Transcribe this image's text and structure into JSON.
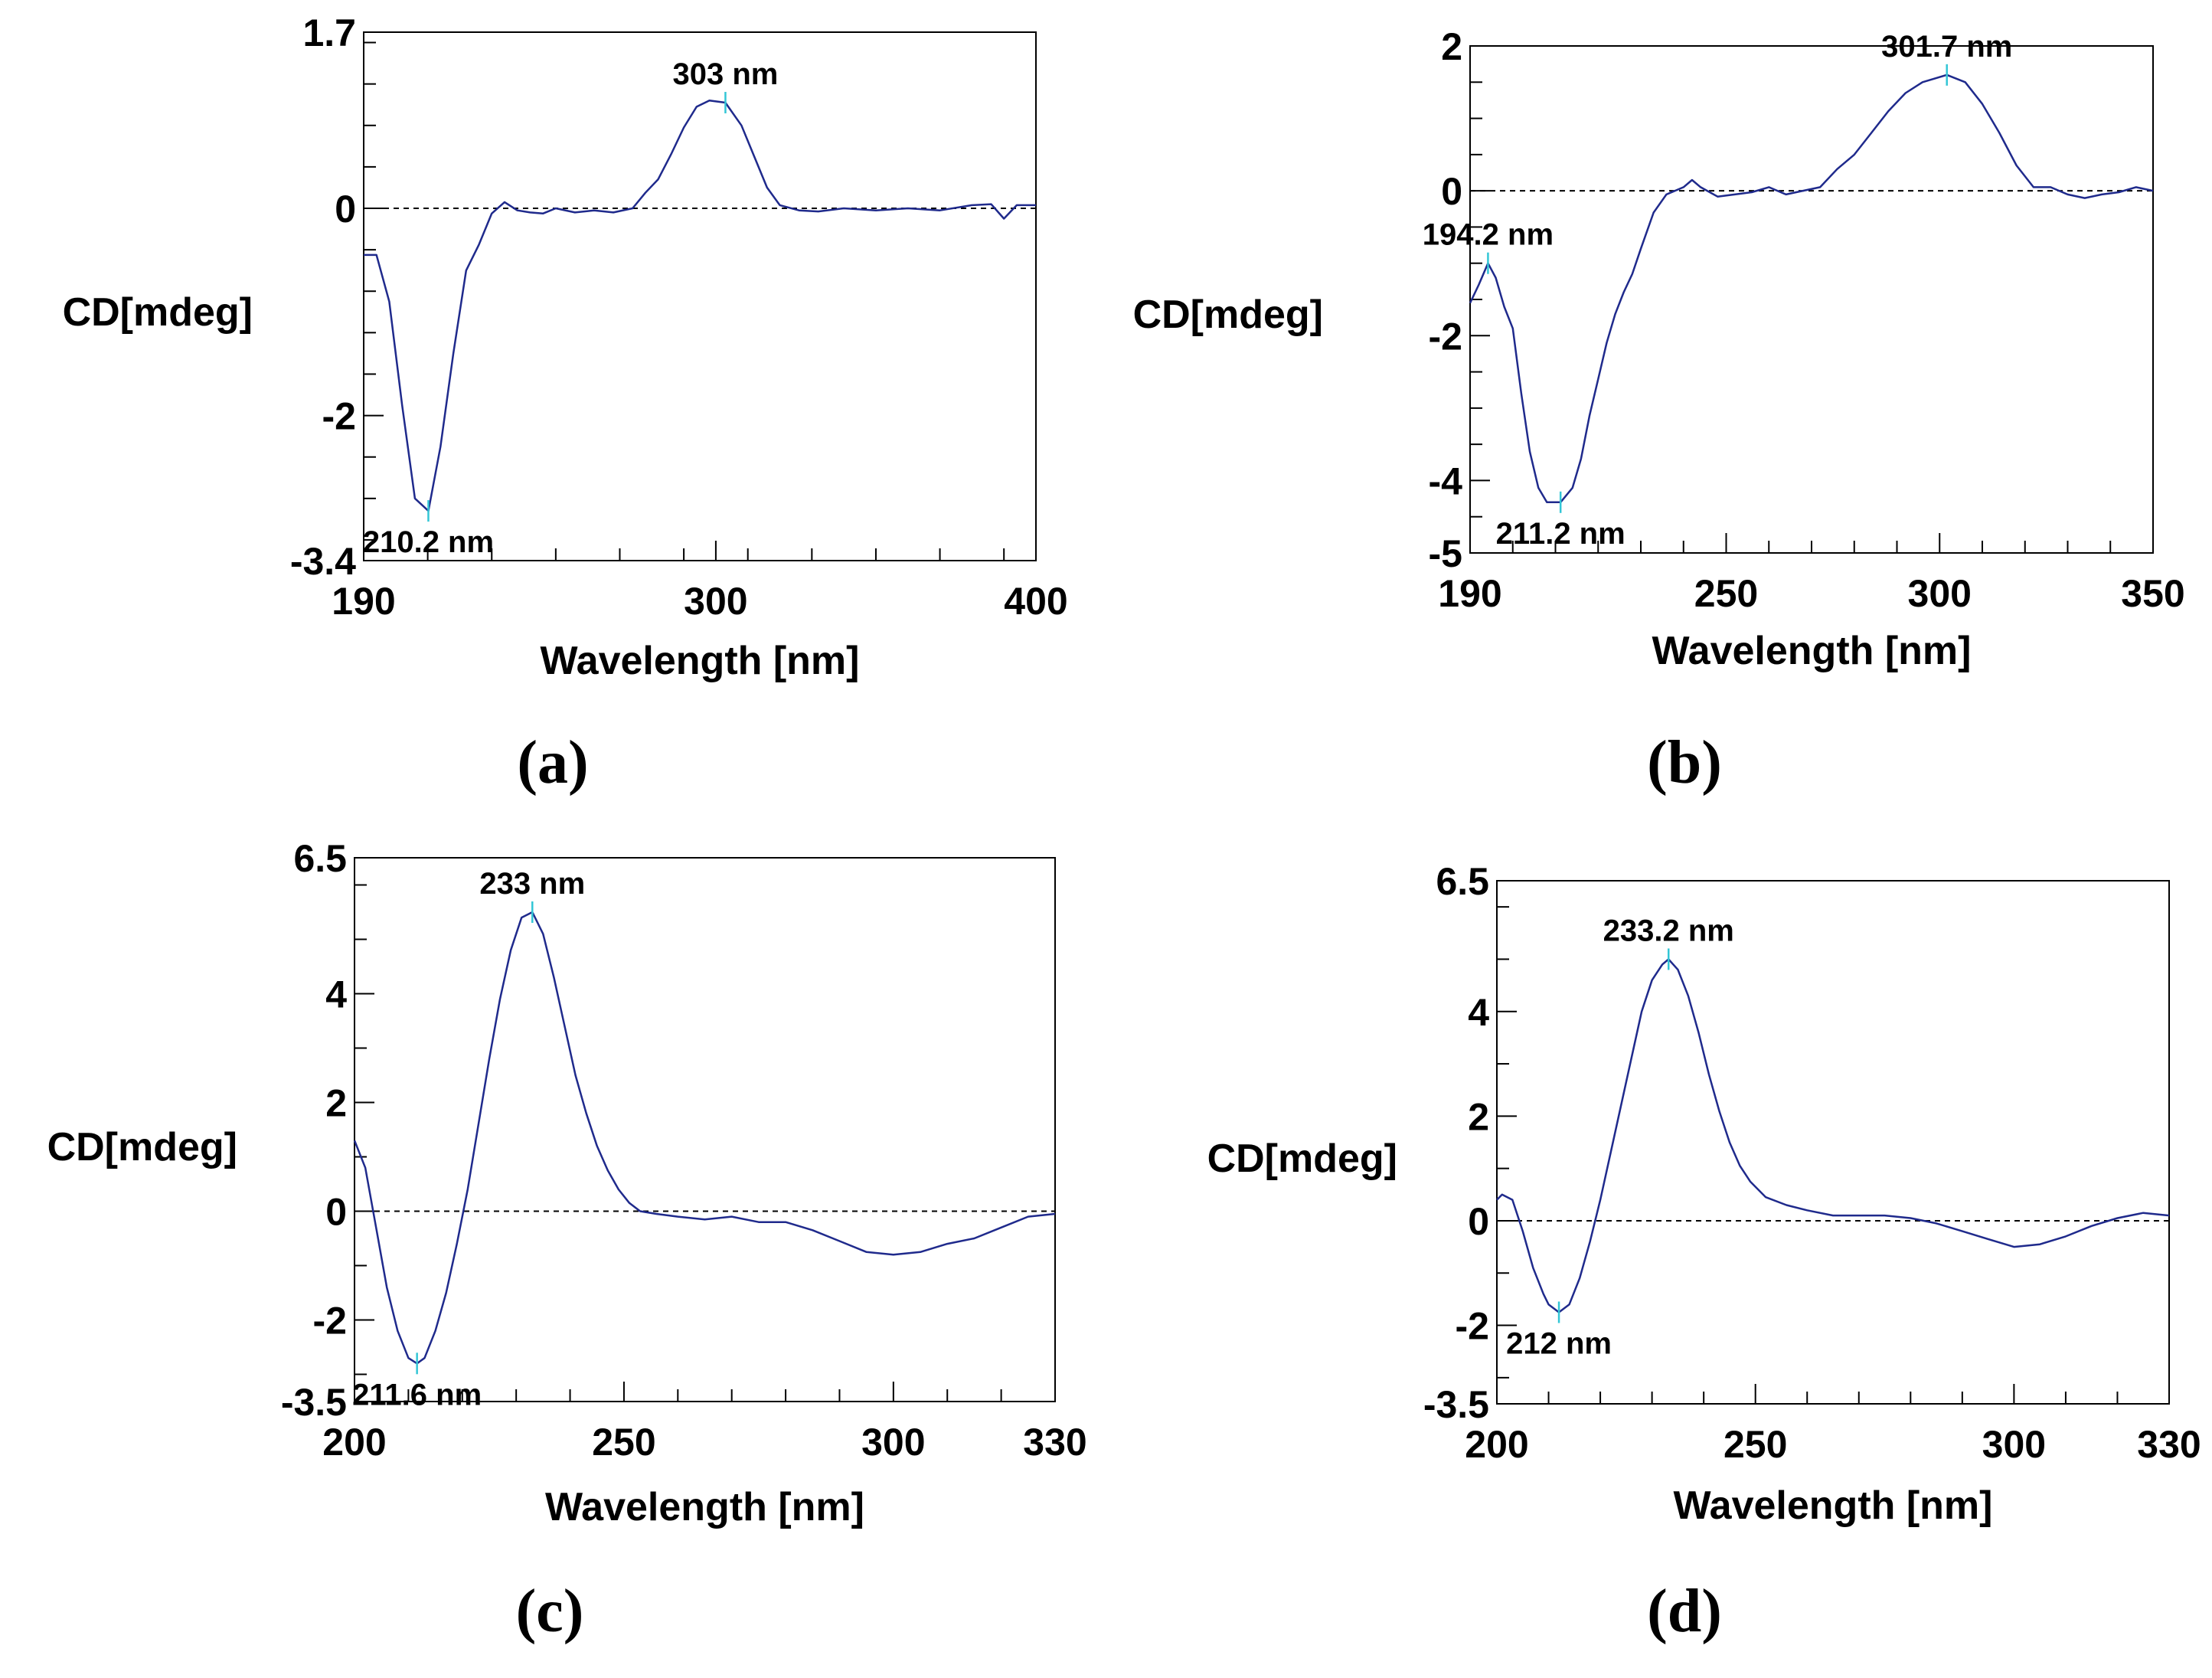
{
  "chart_data": [
    {
      "type": "line",
      "panel": "(a)",
      "xlabel": "Wavelength [nm]",
      "ylabel": "CD[mdeg]",
      "xlim": [
        190,
        400
      ],
      "ylim": [
        -3.4,
        1.7
      ],
      "xticks": [
        190,
        300,
        400
      ],
      "yticks": [
        1.7,
        0,
        -2,
        -3.4
      ],
      "ytick_labels": [
        "1.7",
        "0",
        "-2",
        "-3.4"
      ],
      "x_minor_step": 20,
      "y_minor_step": 0.4,
      "zero_line": true,
      "line_color": "#1f2a8c",
      "marker_color": "#33c6d6",
      "series": [
        {
          "name": "CD",
          "x": [
            190,
            194,
            198,
            202,
            206,
            210.2,
            214,
            218,
            222,
            226,
            230,
            234,
            238,
            242,
            246,
            250,
            256,
            262,
            268,
            274,
            278,
            282,
            286,
            290,
            294,
            298,
            303,
            308,
            312,
            316,
            320,
            326,
            332,
            340,
            350,
            360,
            370,
            380,
            386,
            390,
            394,
            400
          ],
          "y": [
            -0.45,
            -0.45,
            -0.9,
            -1.9,
            -2.8,
            -2.92,
            -2.3,
            -1.4,
            -0.6,
            -0.35,
            -0.05,
            0.06,
            -0.02,
            -0.04,
            -0.05,
            0.0,
            -0.04,
            -0.02,
            -0.04,
            0.0,
            0.15,
            0.28,
            0.52,
            0.78,
            0.98,
            1.04,
            1.02,
            0.8,
            0.5,
            0.2,
            0.03,
            -0.02,
            -0.03,
            0.0,
            -0.02,
            0.0,
            -0.02,
            0.03,
            0.04,
            -0.1,
            0.03,
            0.03
          ]
        }
      ],
      "annotations": [
        {
          "text": "303 nm",
          "x": 303,
          "y": 1.02,
          "pos": "above"
        },
        {
          "text": "210.2 nm",
          "x": 210.2,
          "y": -2.92,
          "pos": "below"
        }
      ]
    },
    {
      "type": "line",
      "panel": "(b)",
      "xlabel": "Wavelength [nm]",
      "ylabel": "CD[mdeg]",
      "xlim": [
        190,
        350
      ],
      "ylim": [
        -5,
        2
      ],
      "xticks": [
        190,
        250,
        300,
        350
      ],
      "yticks": [
        2,
        0,
        -2,
        -4,
        -5
      ],
      "ytick_labels": [
        "2",
        "0",
        "-2",
        "-4",
        "-5"
      ],
      "x_minor_step": 10,
      "y_minor_step": 0.5,
      "zero_line": true,
      "line_color": "#1f2a8c",
      "marker_color": "#33c6d6",
      "series": [
        {
          "name": "CD",
          "x": [
            190,
            192,
            194.2,
            196,
            198,
            200,
            202,
            204,
            206,
            208,
            211.2,
            214,
            216,
            218,
            220,
            222,
            224,
            226,
            228,
            230,
            233,
            236,
            240,
            242,
            244,
            248,
            252,
            256,
            260,
            264,
            268,
            272,
            276,
            280,
            284,
            288,
            292,
            296,
            301.7,
            306,
            310,
            314,
            318,
            322,
            326,
            330,
            334,
            338,
            342,
            346,
            350
          ],
          "y": [
            -1.55,
            -1.3,
            -1.0,
            -1.2,
            -1.6,
            -1.9,
            -2.8,
            -3.6,
            -4.1,
            -4.3,
            -4.3,
            -4.1,
            -3.7,
            -3.1,
            -2.6,
            -2.1,
            -1.7,
            -1.4,
            -1.15,
            -0.8,
            -0.3,
            -0.05,
            0.05,
            0.15,
            0.05,
            -0.08,
            -0.05,
            -0.02,
            0.05,
            -0.05,
            0.0,
            0.05,
            0.3,
            0.5,
            0.8,
            1.1,
            1.35,
            1.5,
            1.6,
            1.5,
            1.2,
            0.8,
            0.35,
            0.05,
            0.05,
            -0.05,
            -0.1,
            -0.05,
            -0.02,
            0.05,
            0.0
          ]
        }
      ],
      "annotations": [
        {
          "text": "301.7 nm",
          "x": 301.7,
          "y": 1.6,
          "pos": "above"
        },
        {
          "text": "194.2 nm",
          "x": 194.2,
          "y": -1.0,
          "pos": "above"
        },
        {
          "text": "211.2 nm",
          "x": 211.2,
          "y": -4.3,
          "pos": "below"
        }
      ]
    },
    {
      "type": "line",
      "panel": "(c)",
      "xlabel": "Wavelength [nm]",
      "ylabel": "CD[mdeg]",
      "xlim": [
        200,
        330
      ],
      "ylim": [
        -3.5,
        6.5
      ],
      "xticks": [
        200,
        250,
        300,
        330
      ],
      "yticks": [
        6.5,
        4,
        2,
        0,
        -2,
        -3.5
      ],
      "ytick_labels": [
        "6.5",
        "4",
        "2",
        "0",
        "-2",
        "-3.5"
      ],
      "x_minor_step": 10,
      "y_minor_step": 1,
      "zero_line": true,
      "line_color": "#1f2a8c",
      "marker_color": "#33c6d6",
      "series": [
        {
          "name": "CD",
          "x": [
            200,
            202,
            204,
            206,
            208,
            210,
            211.6,
            213,
            215,
            217,
            219,
            221,
            223,
            225,
            227,
            229,
            231,
            233,
            235,
            237,
            239,
            241,
            243,
            245,
            247,
            249,
            251,
            253,
            256,
            260,
            265,
            270,
            275,
            280,
            285,
            290,
            295,
            300,
            305,
            310,
            315,
            320,
            325,
            330
          ],
          "y": [
            1.3,
            0.8,
            -0.3,
            -1.4,
            -2.2,
            -2.7,
            -2.8,
            -2.7,
            -2.2,
            -1.5,
            -0.6,
            0.4,
            1.6,
            2.8,
            3.9,
            4.8,
            5.4,
            5.5,
            5.1,
            4.3,
            3.4,
            2.5,
            1.8,
            1.2,
            0.75,
            0.4,
            0.15,
            0.0,
            -0.05,
            -0.1,
            -0.15,
            -0.1,
            -0.2,
            -0.2,
            -0.35,
            -0.55,
            -0.75,
            -0.8,
            -0.75,
            -0.6,
            -0.5,
            -0.3,
            -0.1,
            -0.05
          ]
        }
      ],
      "annotations": [
        {
          "text": "233 nm",
          "x": 233,
          "y": 5.5,
          "pos": "above"
        },
        {
          "text": "211.6 nm",
          "x": 211.6,
          "y": -2.8,
          "pos": "below"
        }
      ]
    },
    {
      "type": "line",
      "panel": "(d)",
      "xlabel": "Wavelength [nm]",
      "ylabel": "CD[mdeg]",
      "xlim": [
        200,
        330
      ],
      "ylim": [
        -3.5,
        6.5
      ],
      "xticks": [
        200,
        250,
        300,
        330
      ],
      "yticks": [
        6.5,
        4,
        2,
        0,
        -2,
        -3.5
      ],
      "ytick_labels": [
        "6.5",
        "4",
        "2",
        "0",
        "-2",
        "-3.5"
      ],
      "x_minor_step": 10,
      "y_minor_step": 1,
      "zero_line": true,
      "line_color": "#1f2a8c",
      "marker_color": "#33c6d6",
      "series": [
        {
          "name": "CD",
          "x": [
            200,
            201,
            203,
            205,
            207,
            209,
            210,
            212,
            214,
            216,
            218,
            220,
            222,
            224,
            226,
            228,
            230,
            232,
            233.2,
            235,
            237,
            239,
            241,
            243,
            245,
            247,
            249,
            252,
            256,
            260,
            265,
            270,
            275,
            280,
            285,
            290,
            295,
            300,
            305,
            310,
            315,
            320,
            325,
            330
          ],
          "y": [
            0.4,
            0.5,
            0.4,
            -0.2,
            -0.9,
            -1.4,
            -1.6,
            -1.75,
            -1.6,
            -1.1,
            -0.4,
            0.4,
            1.3,
            2.2,
            3.1,
            4.0,
            4.6,
            4.9,
            5.0,
            4.8,
            4.3,
            3.6,
            2.8,
            2.1,
            1.5,
            1.05,
            0.75,
            0.45,
            0.3,
            0.2,
            0.1,
            0.1,
            0.1,
            0.05,
            -0.05,
            -0.2,
            -0.35,
            -0.5,
            -0.45,
            -0.3,
            -0.1,
            0.05,
            0.15,
            0.1
          ]
        }
      ],
      "annotations": [
        {
          "text": "233.2 nm",
          "x": 233.2,
          "y": 5.0,
          "pos": "above"
        },
        {
          "text": "212 nm",
          "x": 212,
          "y": -1.75,
          "pos": "below"
        }
      ]
    }
  ]
}
